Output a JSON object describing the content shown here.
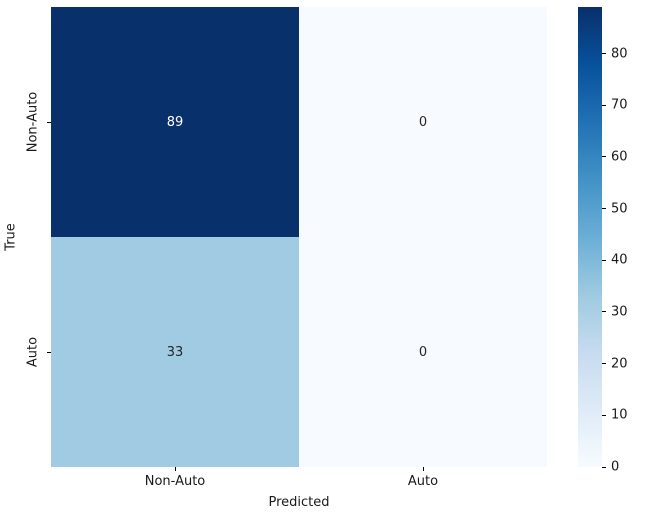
{
  "chart_data": {
    "type": "heatmap",
    "title": "",
    "xlabel": "Predicted",
    "ylabel": "True",
    "x_categories": [
      "Non-Auto",
      "Auto"
    ],
    "y_categories": [
      "Non-Auto",
      "Auto"
    ],
    "values": [
      [
        89,
        0
      ],
      [
        33,
        0
      ]
    ],
    "vmin": 0,
    "vmax": 89,
    "colormap": "Blues",
    "grid": false,
    "cell_colors": [
      [
        "#08306b",
        "#f7fbff"
      ],
      [
        "#a0cbe2",
        "#f7fbff"
      ]
    ],
    "annot_colors": [
      [
        "#ffffff",
        "#262626"
      ],
      [
        "#262626",
        "#262626"
      ]
    ],
    "colorbar": {
      "position": "right",
      "ticks": [
        0,
        10,
        20,
        30,
        40,
        50,
        60,
        70,
        80
      ],
      "gradient_stops": [
        {
          "t": 0.0,
          "color": "#f7fbff"
        },
        {
          "t": 0.125,
          "color": "#deebf7"
        },
        {
          "t": 0.25,
          "color": "#c6dbef"
        },
        {
          "t": 0.375,
          "color": "#9ecae1"
        },
        {
          "t": 0.5,
          "color": "#6baed6"
        },
        {
          "t": 0.625,
          "color": "#4292c6"
        },
        {
          "t": 0.75,
          "color": "#2171b5"
        },
        {
          "t": 0.875,
          "color": "#08519c"
        },
        {
          "t": 1.0,
          "color": "#08306b"
        }
      ]
    }
  }
}
